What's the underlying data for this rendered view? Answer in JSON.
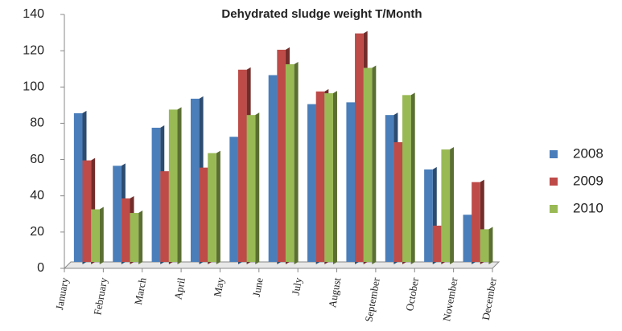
{
  "chart_data": {
    "type": "bar",
    "title": "Dehydrated sludge weight  T/Month",
    "categories": [
      "January",
      "February",
      "March",
      "April",
      "May",
      "June",
      "July",
      "August",
      "September",
      "October",
      "November",
      "December"
    ],
    "series": [
      {
        "name": "2008",
        "color": "#4a7ebb",
        "values": [
          82,
          53,
          74,
          90,
          69,
          103,
          87,
          88,
          81,
          51,
          26,
          null
        ]
      },
      {
        "name": "2009",
        "color": "#be4b48",
        "values": [
          56,
          35,
          50,
          52,
          106,
          117,
          94,
          126,
          66,
          20,
          44,
          null
        ]
      },
      {
        "name": "2010",
        "color": "#98b954",
        "values": [
          29,
          27,
          84,
          60,
          81,
          109,
          93,
          107,
          92,
          62,
          18,
          null
        ]
      }
    ],
    "ylim": [
      0,
      140
    ],
    "yticks": [
      0,
      20,
      40,
      60,
      80,
      100,
      120,
      140
    ],
    "legend": "right"
  }
}
